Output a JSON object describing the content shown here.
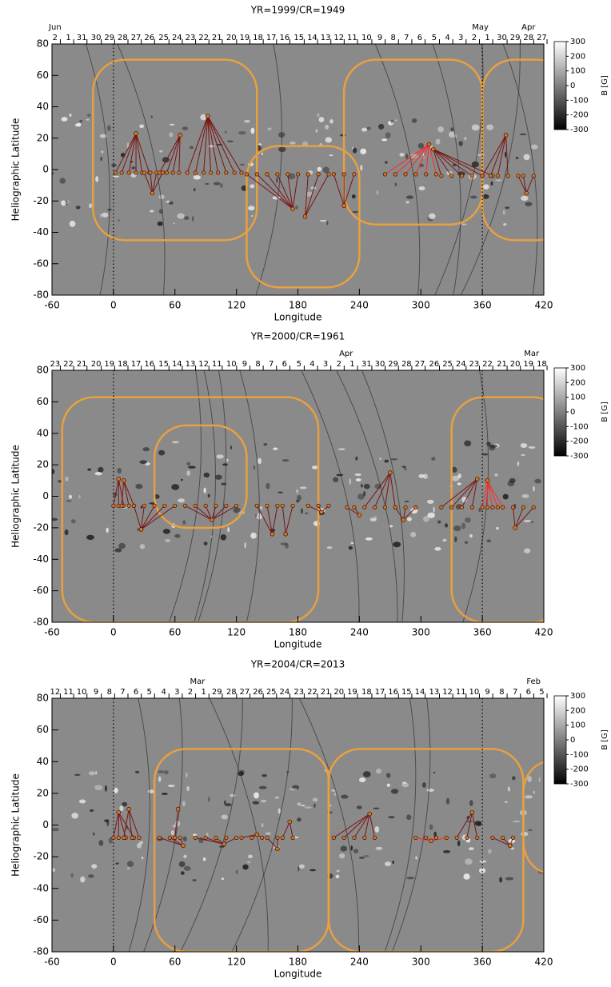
{
  "chart_data": [
    {
      "type": "scatter",
      "title": "YR=1999/CR=1949",
      "xlabel": "Longitude",
      "ylabel": "Heliographic Latitude",
      "xlim": [
        -60,
        420
      ],
      "ylim": [
        -80,
        80
      ],
      "xticks": [
        -60,
        0,
        60,
        120,
        180,
        240,
        300,
        360,
        420
      ],
      "yticks": [
        -80,
        -60,
        -40,
        -20,
        0,
        20,
        40,
        60,
        80
      ],
      "vlines": [
        0,
        360
      ],
      "top_ticks": [
        {
          "value": -57,
          "label": "2"
        },
        {
          "value": -44,
          "label": "1"
        },
        {
          "value": -31,
          "label": "31"
        },
        {
          "value": -17,
          "label": "30"
        },
        {
          "value": -4,
          "label": "29"
        },
        {
          "value": 9,
          "label": "28"
        },
        {
          "value": 22,
          "label": "27"
        },
        {
          "value": 35,
          "label": "26"
        },
        {
          "value": 49,
          "label": "25"
        },
        {
          "value": 62,
          "label": "24"
        },
        {
          "value": 75,
          "label": "23"
        },
        {
          "value": 88,
          "label": "22"
        },
        {
          "value": 101,
          "label": "21"
        },
        {
          "value": 115,
          "label": "20"
        },
        {
          "value": 128,
          "label": "19"
        },
        {
          "value": 141,
          "label": "18"
        },
        {
          "value": 154,
          "label": "17"
        },
        {
          "value": 167,
          "label": "16"
        },
        {
          "value": 181,
          "label": "15"
        },
        {
          "value": 194,
          "label": "14"
        },
        {
          "value": 207,
          "label": "13"
        },
        {
          "value": 220,
          "label": "12"
        },
        {
          "value": 233,
          "label": "11"
        },
        {
          "value": 247,
          "label": "10"
        },
        {
          "value": 260,
          "label": "9"
        },
        {
          "value": 273,
          "label": "8"
        },
        {
          "value": 286,
          "label": "7"
        },
        {
          "value": 299,
          "label": "6"
        },
        {
          "value": 313,
          "label": "5"
        },
        {
          "value": 326,
          "label": "4"
        },
        {
          "value": 339,
          "label": "3"
        },
        {
          "value": 352,
          "label": "2"
        },
        {
          "value": 365,
          "label": "1"
        },
        {
          "value": 379,
          "label": "30"
        },
        {
          "value": 392,
          "label": "29"
        },
        {
          "value": 405,
          "label": "28"
        },
        {
          "value": 418,
          "label": "27"
        }
      ],
      "month_labels": [
        {
          "value": -57,
          "label": "Jun"
        },
        {
          "value": 358,
          "label": "May"
        },
        {
          "value": 405,
          "label": "Apr"
        }
      ],
      "colorbar": {
        "label": "B [G]",
        "lim": [
          -300,
          300
        ],
        "ticks": [
          300,
          200,
          100,
          0,
          -100,
          -200,
          -300
        ]
      },
      "groups": [
        {
          "peak": [
            22,
            23
          ],
          "feet": [
            2,
            8,
            15,
            22,
            28,
            35
          ],
          "foot_y": -2,
          "color": "#7a1414"
        },
        {
          "peak": [
            38,
            -15
          ],
          "feet": [
            30,
            36,
            42,
            48
          ],
          "foot_y": -2,
          "color": "#7a1414"
        },
        {
          "peak": [
            65,
            22
          ],
          "feet": [
            45,
            52,
            58,
            64
          ],
          "foot_y": -2,
          "color": "#7a1414"
        },
        {
          "peak": [
            92,
            34
          ],
          "feet": [
            72,
            80,
            88,
            95,
            102,
            110,
            118,
            125
          ],
          "foot_y": -2,
          "color": "#7a1414"
        },
        {
          "peak": [
            175,
            -25
          ],
          "feet": [
            130,
            140,
            150,
            160,
            170,
            180
          ],
          "foot_y": -3,
          "color": "#7a1414"
        },
        {
          "peak": [
            187,
            -30
          ],
          "feet": [
            190,
            200,
            210
          ],
          "foot_y": -3,
          "color": "#7a1414"
        },
        {
          "peak": [
            225,
            -23
          ],
          "feet": [
            215,
            225,
            235
          ],
          "foot_y": -3,
          "color": "#7a1414"
        },
        {
          "peak": [
            308,
            16
          ],
          "feet": [
            265,
            275,
            285,
            295,
            305,
            315
          ],
          "foot_y": -3,
          "color": "#ff2a2a"
        },
        {
          "peak": [
            312,
            13
          ],
          "feet": [
            320,
            330,
            340,
            350,
            360,
            370
          ],
          "foot_y": -4,
          "color": "#7a1414"
        },
        {
          "peak": [
            383,
            22
          ],
          "feet": [
            360,
            368,
            375,
            385
          ],
          "foot_y": -4,
          "color": "#7a1414"
        },
        {
          "peak": [
            403,
            -15
          ],
          "feet": [
            395,
            400,
            410
          ],
          "foot_y": -4,
          "color": "#7a1414"
        }
      ]
    },
    {
      "type": "scatter",
      "title": "YR=2000/CR=1961",
      "xlabel": "Longitude",
      "ylabel": "Heliographic Latitude",
      "xlim": [
        -60,
        420
      ],
      "ylim": [
        -80,
        80
      ],
      "xticks": [
        -60,
        0,
        60,
        120,
        180,
        240,
        300,
        360,
        420
      ],
      "yticks": [
        -80,
        -60,
        -40,
        -20,
        0,
        20,
        40,
        60,
        80
      ],
      "vlines": [
        0,
        360
      ],
      "top_ticks": [
        {
          "value": -57,
          "label": "23"
        },
        {
          "value": -44,
          "label": "22"
        },
        {
          "value": -31,
          "label": "21"
        },
        {
          "value": -17,
          "label": "20"
        },
        {
          "value": -4,
          "label": "19"
        },
        {
          "value": 9,
          "label": "18"
        },
        {
          "value": 22,
          "label": "17"
        },
        {
          "value": 35,
          "label": "16"
        },
        {
          "value": 49,
          "label": "15"
        },
        {
          "value": 62,
          "label": "14"
        },
        {
          "value": 75,
          "label": "13"
        },
        {
          "value": 88,
          "label": "12"
        },
        {
          "value": 101,
          "label": "11"
        },
        {
          "value": 115,
          "label": "10"
        },
        {
          "value": 128,
          "label": "9"
        },
        {
          "value": 141,
          "label": "8"
        },
        {
          "value": 154,
          "label": "7"
        },
        {
          "value": 167,
          "label": "6"
        },
        {
          "value": 181,
          "label": "5"
        },
        {
          "value": 194,
          "label": "4"
        },
        {
          "value": 207,
          "label": "3"
        },
        {
          "value": 220,
          "label": "2"
        },
        {
          "value": 233,
          "label": "1"
        },
        {
          "value": 247,
          "label": "31"
        },
        {
          "value": 260,
          "label": "30"
        },
        {
          "value": 273,
          "label": "29"
        },
        {
          "value": 286,
          "label": "28"
        },
        {
          "value": 299,
          "label": "27"
        },
        {
          "value": 313,
          "label": "26"
        },
        {
          "value": 326,
          "label": "25"
        },
        {
          "value": 339,
          "label": "24"
        },
        {
          "value": 352,
          "label": "23"
        },
        {
          "value": 365,
          "label": "22"
        },
        {
          "value": 379,
          "label": "21"
        },
        {
          "value": 392,
          "label": "20"
        },
        {
          "value": 405,
          "label": "19"
        },
        {
          "value": 418,
          "label": "18"
        }
      ],
      "month_labels": [
        {
          "value": 227,
          "label": "Apr"
        },
        {
          "value": 408,
          "label": "Mar"
        }
      ],
      "colorbar": {
        "label": "B [G]",
        "lim": [
          -300,
          300
        ],
        "ticks": [
          300,
          200,
          100,
          0,
          -100,
          -200,
          -300
        ]
      },
      "groups": [
        {
          "peak": [
            5,
            11
          ],
          "feet": [
            0,
            5,
            10
          ],
          "foot_y": -6,
          "color": "#7a1414"
        },
        {
          "peak": [
            10,
            10
          ],
          "feet": [
            8,
            15,
            20
          ],
          "foot_y": -6,
          "color": "#7a1414"
        },
        {
          "peak": [
            27,
            -21
          ],
          "feet": [
            20,
            30,
            40,
            50,
            60
          ],
          "foot_y": -6,
          "color": "#7a1414"
        },
        {
          "peak": [
            96,
            -15
          ],
          "feet": [
            70,
            80,
            90,
            100,
            110,
            120
          ],
          "foot_y": -6,
          "color": "#7a1414"
        },
        {
          "peak": [
            155,
            -24
          ],
          "feet": [
            140,
            150,
            160
          ],
          "foot_y": -6,
          "color": "#7a1414"
        },
        {
          "peak": [
            168,
            -24
          ],
          "feet": [
            165,
            175
          ],
          "foot_y": -6,
          "color": "#7a1414"
        },
        {
          "peak": [
            203,
            -10
          ],
          "feet": [
            190,
            200,
            210
          ],
          "foot_y": -6,
          "color": "#7a1414"
        },
        {
          "peak": [
            240,
            -12
          ],
          "feet": [
            228,
            235
          ],
          "foot_y": -7,
          "color": "#7a1414"
        },
        {
          "peak": [
            270,
            15
          ],
          "feet": [
            245,
            255,
            265,
            275
          ],
          "foot_y": -7,
          "color": "#7a1414"
        },
        {
          "peak": [
            283,
            -15
          ],
          "feet": [
            275,
            285,
            295
          ],
          "foot_y": -7,
          "color": "#7a1414"
        },
        {
          "peak": [
            355,
            11
          ],
          "feet": [
            320,
            330,
            340,
            350
          ],
          "foot_y": -7,
          "color": "#7a1414"
        },
        {
          "peak": [
            365,
            10
          ],
          "feet": [
            360,
            365,
            370,
            375,
            380
          ],
          "foot_y": -7,
          "color": "#ff2a2a"
        },
        {
          "peak": [
            392,
            -20
          ],
          "feet": [
            390,
            400,
            410
          ],
          "foot_y": -7,
          "color": "#7a1414"
        }
      ]
    },
    {
      "type": "scatter",
      "title": "YR=2004/CR=2013",
      "xlabel": "Longitude",
      "ylabel": "Heliographic Latitude",
      "xlim": [
        -60,
        420
      ],
      "ylim": [
        -80,
        80
      ],
      "xticks": [
        -60,
        0,
        60,
        120,
        180,
        240,
        300,
        360,
        420
      ],
      "yticks": [
        -80,
        -60,
        -40,
        -20,
        0,
        20,
        40,
        60,
        80
      ],
      "vlines": [
        0,
        360
      ],
      "top_ticks": [
        {
          "value": -57,
          "label": "12"
        },
        {
          "value": -44,
          "label": "11"
        },
        {
          "value": -31,
          "label": "10"
        },
        {
          "value": -17,
          "label": "9"
        },
        {
          "value": -4,
          "label": "8"
        },
        {
          "value": 9,
          "label": "7"
        },
        {
          "value": 22,
          "label": "6"
        },
        {
          "value": 35,
          "label": "5"
        },
        {
          "value": 49,
          "label": "4"
        },
        {
          "value": 62,
          "label": "3"
        },
        {
          "value": 75,
          "label": "2"
        },
        {
          "value": 88,
          "label": "1"
        },
        {
          "value": 101,
          "label": "29"
        },
        {
          "value": 115,
          "label": "28"
        },
        {
          "value": 128,
          "label": "27"
        },
        {
          "value": 141,
          "label": "26"
        },
        {
          "value": 154,
          "label": "25"
        },
        {
          "value": 167,
          "label": "24"
        },
        {
          "value": 181,
          "label": "23"
        },
        {
          "value": 194,
          "label": "22"
        },
        {
          "value": 207,
          "label": "21"
        },
        {
          "value": 220,
          "label": "20"
        },
        {
          "value": 233,
          "label": "19"
        },
        {
          "value": 247,
          "label": "18"
        },
        {
          "value": 260,
          "label": "17"
        },
        {
          "value": 273,
          "label": "16"
        },
        {
          "value": 286,
          "label": "15"
        },
        {
          "value": 299,
          "label": "14"
        },
        {
          "value": 313,
          "label": "13"
        },
        {
          "value": 326,
          "label": "12"
        },
        {
          "value": 339,
          "label": "11"
        },
        {
          "value": 352,
          "label": "10"
        },
        {
          "value": 365,
          "label": "9"
        },
        {
          "value": 379,
          "label": "8"
        },
        {
          "value": 392,
          "label": "7"
        },
        {
          "value": 405,
          "label": "6"
        },
        {
          "value": 418,
          "label": "5"
        }
      ],
      "month_labels": [
        {
          "value": 82,
          "label": "Mar"
        },
        {
          "value": 410,
          "label": "Feb"
        }
      ],
      "colorbar": {
        "label": "B [G]",
        "lim": [
          -300,
          300
        ],
        "ticks": [
          300,
          200,
          100,
          0,
          -100,
          -200,
          -300
        ]
      },
      "groups": [
        {
          "peak": [
            5,
            8
          ],
          "feet": [
            0,
            5,
            12,
            20
          ],
          "foot_y": -8,
          "color": "#7a1414"
        },
        {
          "peak": [
            15,
            10
          ],
          "feet": [
            10,
            18,
            25
          ],
          "foot_y": -8,
          "color": "#7a1414"
        },
        {
          "peak": [
            63,
            10
          ],
          "feet": [
            60
          ],
          "foot_y": -8,
          "color": "#7a1414"
        },
        {
          "peak": [
            68,
            -13
          ],
          "feet": [
            45,
            55,
            65
          ],
          "foot_y": -8,
          "color": "#7a1414"
        },
        {
          "peak": [
            108,
            -12
          ],
          "feet": [
            80,
            90,
            100,
            110,
            120
          ],
          "foot_y": -8,
          "color": "#7a1414"
        },
        {
          "peak": [
            140,
            -6
          ],
          "feet": [
            125,
            135,
            145
          ],
          "foot_y": -8,
          "color": "#7a1414"
        },
        {
          "peak": [
            160,
            -15
          ],
          "feet": [
            150,
            160
          ],
          "foot_y": -8,
          "color": "#7a1414"
        },
        {
          "peak": [
            172,
            2
          ],
          "feet": [
            165,
            175
          ],
          "foot_y": -8,
          "color": "#7a1414"
        },
        {
          "peak": [
            250,
            7
          ],
          "feet": [
            215,
            225,
            235,
            245,
            255
          ],
          "foot_y": -8,
          "color": "#7a1414"
        },
        {
          "peak": [
            310,
            -10
          ],
          "feet": [
            295,
            305,
            315,
            325
          ],
          "foot_y": -8,
          "color": "#ff2a2a"
        },
        {
          "peak": [
            350,
            8
          ],
          "feet": [
            335,
            345,
            355
          ],
          "foot_y": -8,
          "color": "#7a1414"
        },
        {
          "peak": [
            387,
            -13
          ],
          "feet": [
            370,
            380,
            390
          ],
          "foot_y": -8,
          "color": "#7a1414"
        }
      ]
    }
  ]
}
